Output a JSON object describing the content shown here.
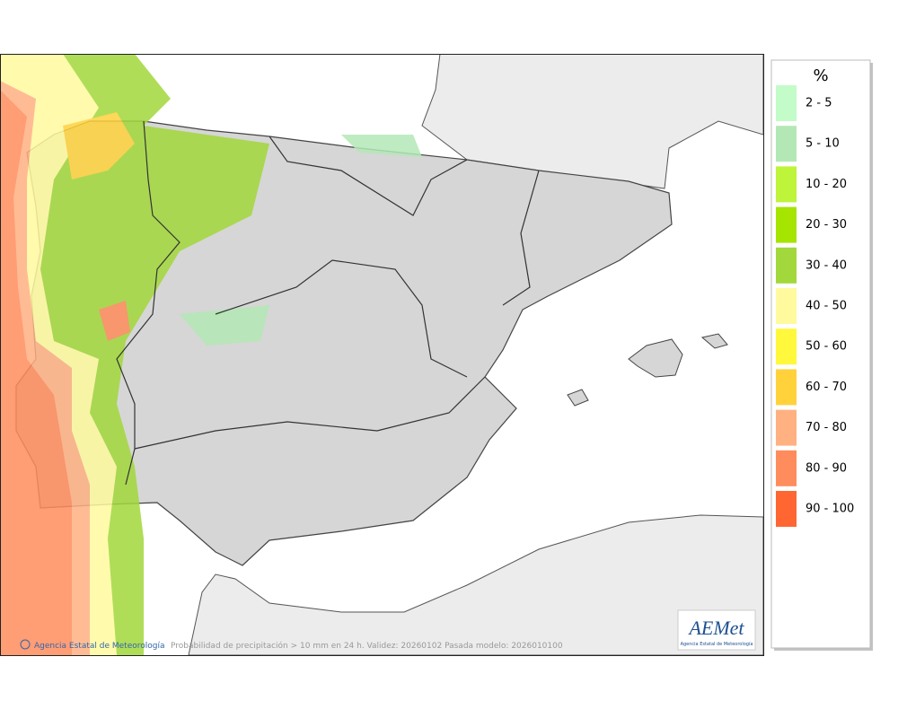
{
  "legend": {
    "title": "%",
    "items": [
      {
        "label": "2 - 5",
        "color": "#c3fcc8"
      },
      {
        "label": "5 - 10",
        "color": "#b3e8b6"
      },
      {
        "label": "10 - 20",
        "color": "#bef43a"
      },
      {
        "label": "20 - 30",
        "color": "#a6e402"
      },
      {
        "label": "30 - 40",
        "color": "#a2d83c"
      },
      {
        "label": "40 - 50",
        "color": "#fffa9e"
      },
      {
        "label": "50 - 60",
        "color": "#fff83c"
      },
      {
        "label": "60 - 70",
        "color": "#ffd23c"
      },
      {
        "label": "70 - 80",
        "color": "#ffb182"
      },
      {
        "label": "80 - 90",
        "color": "#ff8c5c"
      },
      {
        "label": "90 - 100",
        "color": "#ff6632"
      }
    ]
  },
  "footer": {
    "credit": "Agencia Estatal de Meteorología",
    "caption": "Probabilidad de precipitación > 10 mm en 24 h. Validez: 20260102 Pasada modelo: 2026010100"
  },
  "logo": {
    "name": "AEMet",
    "subtitle": "Agencia Estatal de Meteorología"
  }
}
